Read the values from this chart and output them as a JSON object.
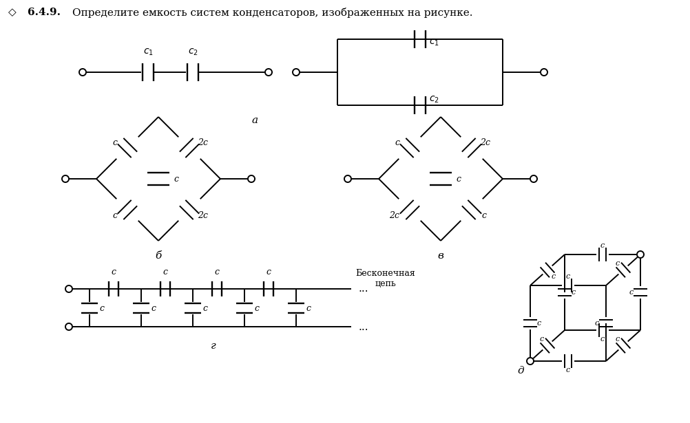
{
  "title_diamond": "◇",
  "title_bold": "6.4.9.",
  "title_text": "Определите емкость систем конденсаторов, изображенных на рисунке.",
  "label_a": "а",
  "label_b": "б",
  "label_v": "в",
  "label_g": "г",
  "label_d": "д",
  "label_beskon": "Бесконечная\nцепь",
  "bg_color": "#ffffff",
  "line_color": "#000000",
  "text_color": "#000000"
}
